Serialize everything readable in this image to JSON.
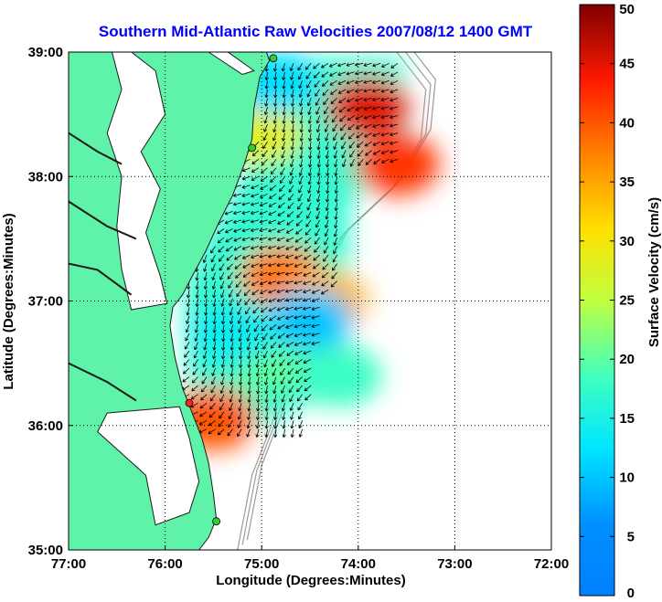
{
  "title": "Southern Mid-Atlantic Raw Velocities 2007/08/12 1400 GMT",
  "xlabel": "Longitude (Degrees:Minutes)",
  "ylabel": "Latitude (Degrees:Minutes)",
  "colorbar_label": "Surface Velocity (cm/s)",
  "colors": {
    "land": "#5ef3a8",
    "water": "#ffffff",
    "grid": "#000000",
    "bathymetry": "#9a9a9a",
    "title": "#0000ff",
    "station_active": "#33cc33",
    "station_inactive": "#ff2222"
  },
  "chart_data": {
    "type": "heatmap",
    "plot": "surface current vector field",
    "x_axis": {
      "min": -77,
      "max": -72,
      "ticks": [
        -77,
        -76,
        -75,
        -74,
        -73,
        -72
      ],
      "tick_labels": [
        "77:00",
        "76:00",
        "75:00",
        "74:00",
        "73:00",
        "72:00"
      ]
    },
    "y_axis": {
      "min": 35,
      "max": 39,
      "ticks": [
        35,
        36,
        37,
        38,
        39
      ],
      "tick_labels": [
        "35:00",
        "36:00",
        "37:00",
        "38:00",
        "39:00"
      ]
    },
    "grid": true,
    "colorbar": {
      "min": 0,
      "max": 50,
      "ticks": [
        0,
        5,
        10,
        15,
        20,
        25,
        30,
        35,
        40,
        45,
        50
      ],
      "tick_labels": [
        "0",
        "5",
        "10",
        "15",
        "20",
        "25",
        "30",
        "35",
        "40",
        "45",
        "50"
      ],
      "colormap": "jet",
      "units": "cm/s",
      "location": "right"
    },
    "speed_hotspots": [
      {
        "lon": -73.9,
        "lat": 38.55,
        "speed": 45
      },
      {
        "lon": -73.6,
        "lat": 38.1,
        "speed": 42
      },
      {
        "lon": -74.8,
        "lat": 37.2,
        "speed": 38
      },
      {
        "lon": -74.35,
        "lat": 37.0,
        "speed": 34
      },
      {
        "lon": -75.5,
        "lat": 36.05,
        "speed": 40
      },
      {
        "lon": -75.0,
        "lat": 38.35,
        "speed": 28
      },
      {
        "lon": -74.9,
        "lat": 36.5,
        "speed": 20
      },
      {
        "lon": -74.5,
        "lat": 36.85,
        "speed": 10
      },
      {
        "lon": -74.85,
        "lat": 38.75,
        "speed": 12
      },
      {
        "lon": -75.3,
        "lat": 36.75,
        "speed": 14
      },
      {
        "lon": -74.2,
        "lat": 36.4,
        "speed": 18
      }
    ],
    "stations": [
      {
        "lon": -74.88,
        "lat": 38.95,
        "status": "active"
      },
      {
        "lon": -75.1,
        "lat": 38.23,
        "status": "active"
      },
      {
        "lon": -75.75,
        "lat": 36.18,
        "status": "inactive"
      },
      {
        "lon": -75.47,
        "lat": 35.23,
        "status": "active"
      }
    ]
  }
}
